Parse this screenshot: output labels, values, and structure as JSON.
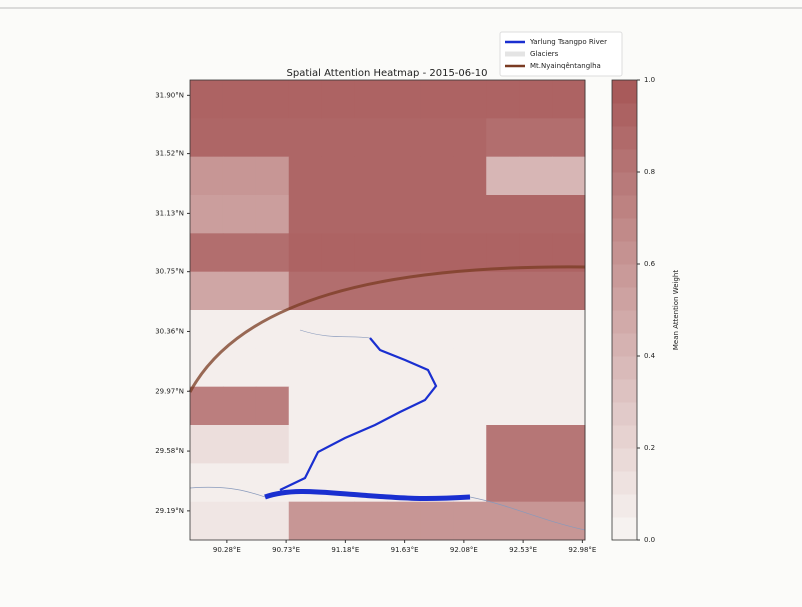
{
  "chart_data": {
    "type": "heatmap",
    "title": "Spatial Attention Heatmap - 2015-06-10",
    "xlim": [
      90.0,
      93.0
    ],
    "ylim": [
      29.0,
      32.0
    ],
    "xticks": [
      {
        "value": 90.28,
        "label": "90.28°E"
      },
      {
        "value": 90.73,
        "label": "90.73°E"
      },
      {
        "value": 91.18,
        "label": "91.18°E"
      },
      {
        "value": 91.63,
        "label": "91.63°E"
      },
      {
        "value": 92.08,
        "label": "92.08°E"
      },
      {
        "value": 92.53,
        "label": "92.53°E"
      },
      {
        "value": 92.98,
        "label": "92.98°E"
      }
    ],
    "yticks": [
      {
        "value": 31.9,
        "label": "31.90°N"
      },
      {
        "value": 31.52,
        "label": "31.52°N"
      },
      {
        "value": 31.13,
        "label": "31.13°N"
      },
      {
        "value": 30.75,
        "label": "30.75°N"
      },
      {
        "value": 30.36,
        "label": "30.36°N"
      },
      {
        "value": 29.97,
        "label": "29.97°N"
      },
      {
        "value": 29.58,
        "label": "29.58°N"
      },
      {
        "value": 29.19,
        "label": "29.19°N"
      }
    ],
    "z": [
      [
        0.92,
        0.92,
        0.92,
        0.92,
        0.92,
        0.92,
        0.92,
        0.92,
        0.92,
        0.92,
        0.92,
        0.92
      ],
      [
        0.9,
        0.9,
        0.9,
        0.9,
        0.9,
        0.9,
        0.9,
        0.9,
        0.9,
        0.85,
        0.85,
        0.85
      ],
      [
        0.6,
        0.6,
        0.6,
        0.9,
        0.9,
        0.9,
        0.9,
        0.9,
        0.9,
        0.4,
        0.4,
        0.4
      ],
      [
        0.55,
        0.55,
        0.55,
        0.9,
        0.9,
        0.9,
        0.9,
        0.9,
        0.9,
        0.9,
        0.9,
        0.9
      ],
      [
        0.85,
        0.85,
        0.85,
        0.92,
        0.92,
        0.92,
        0.92,
        0.92,
        0.92,
        0.92,
        0.92,
        0.92
      ],
      [
        0.5,
        0.5,
        0.5,
        0.85,
        0.85,
        0.85,
        0.85,
        0.85,
        0.85,
        0.85,
        0.85,
        0.85
      ],
      [
        0.05,
        0.05,
        0.05,
        0.05,
        0.05,
        0.05,
        0.05,
        0.05,
        0.05,
        0.05,
        0.05,
        0.05
      ],
      [
        0.05,
        0.05,
        0.05,
        0.05,
        0.05,
        0.05,
        0.05,
        0.05,
        0.05,
        0.05,
        0.05,
        0.05
      ],
      [
        0.75,
        0.75,
        0.75,
        0.05,
        0.05,
        0.05,
        0.05,
        0.05,
        0.05,
        0.05,
        0.05,
        0.05
      ],
      [
        0.15,
        0.15,
        0.15,
        0.05,
        0.05,
        0.05,
        0.05,
        0.05,
        0.05,
        0.8,
        0.8,
        0.8
      ],
      [
        0.05,
        0.05,
        0.05,
        0.05,
        0.05,
        0.05,
        0.05,
        0.05,
        0.05,
        0.8,
        0.8,
        0.8
      ],
      [
        0.1,
        0.1,
        0.1,
        0.6,
        0.6,
        0.6,
        0.6,
        0.6,
        0.6,
        0.6,
        0.6,
        0.6
      ]
    ],
    "colorbar": {
      "label": "Mean Attention Weight",
      "lim": [
        0.0,
        1.0
      ],
      "ticks": [
        {
          "value": 0,
          "label": "0.0"
        },
        {
          "value": 0.2,
          "label": "0.2"
        },
        {
          "value": 0.4,
          "label": "0.4"
        },
        {
          "value": 0.6,
          "label": "0.6"
        },
        {
          "value": 0.8,
          "label": "0.8"
        },
        {
          "value": 1,
          "label": "1.0"
        }
      ],
      "colors": [
        "#f8f6f4",
        "#a65656"
      ]
    },
    "legend": [
      {
        "name": "Yarlung Tsangpo River",
        "color": "#1a2fd0"
      },
      {
        "name": "Glaciers",
        "color": "#e4e4e4"
      },
      {
        "name": "Mt.Nyainqêntanglha",
        "color": "#7a3b22"
      }
    ]
  }
}
